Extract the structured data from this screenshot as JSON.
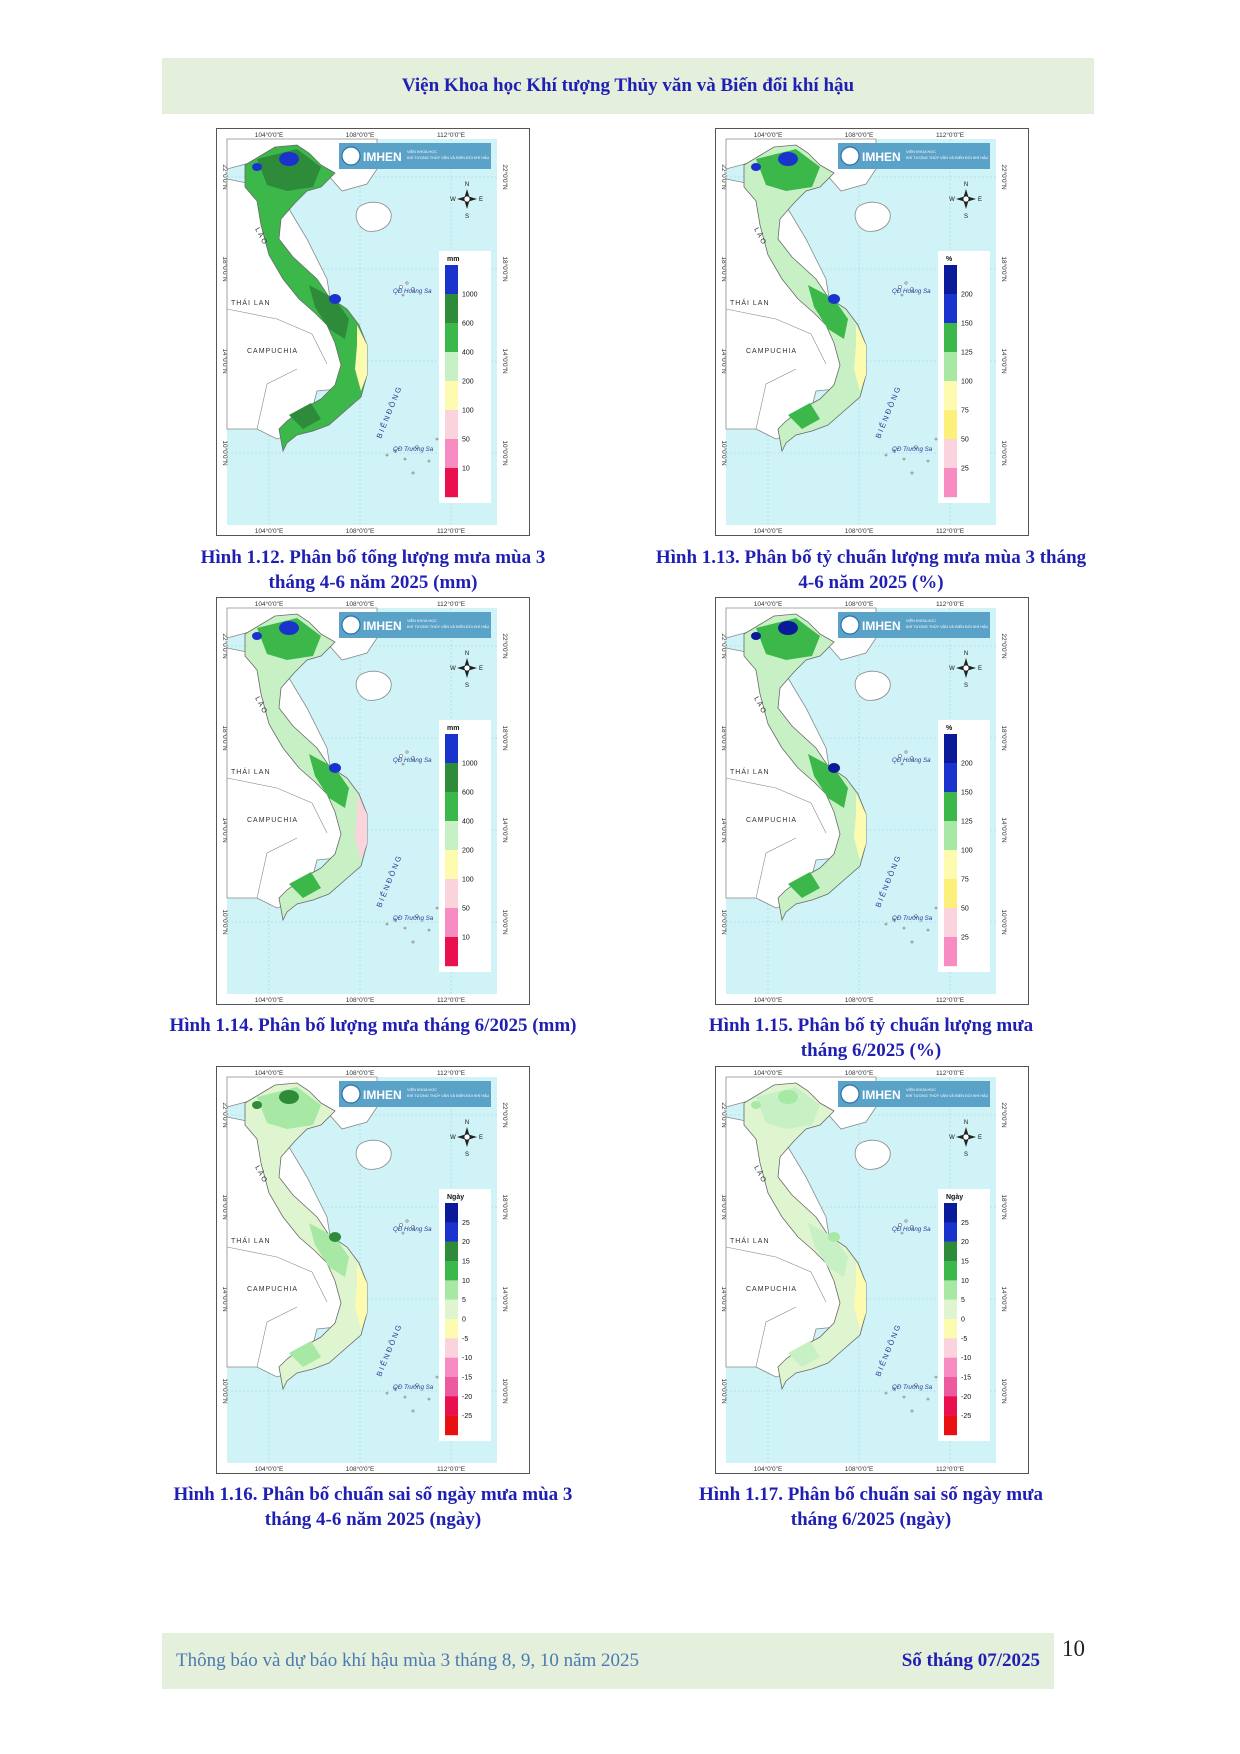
{
  "header": {
    "title": "Viện Khoa học Khí tượng Thủy văn và Biến đổi khí hậu"
  },
  "map_labels": {
    "lon_ticks": [
      "104°0'0\"E",
      "108°0'0\"E",
      "112°0'0\"E"
    ],
    "lat_ticks": [
      "22°0'0\"N",
      "18°0'0\"N",
      "14°0'0\"N",
      "10°0'0\"N"
    ],
    "logo": "IMHEN",
    "logo_sub1": "VIỆN KHOA HỌC",
    "logo_sub2": "KHÍ TƯỢNG THỦY VĂN VÀ BIẾN ĐỔI KHÍ HẬU",
    "compass": {
      "n": "N",
      "s": "S",
      "e": "E",
      "w": "W"
    },
    "laos": "L À O",
    "thailand": "THÁI LAN",
    "cambodia": "CAMPUCHIA",
    "east_sea": "B I Ể N   Đ Ô N G",
    "paracel": "QĐ Hoàng Sa",
    "spratly": "QĐ Trường Sa"
  },
  "legends": {
    "mm": {
      "unit": "mm",
      "labels": [
        "1000",
        "600",
        "400",
        "200",
        "100",
        "50",
        "10"
      ],
      "colors": [
        "#1a33cc",
        "#2e8b3a",
        "#3cb84a",
        "#c7f0c4",
        "#fdfbb0",
        "#fbd3dc",
        "#f78cc3",
        "#e8104e"
      ]
    },
    "pct": {
      "unit": "%",
      "labels": [
        "200",
        "150",
        "125",
        "100",
        "75",
        "50",
        "25"
      ],
      "colors": [
        "#0a1a99",
        "#1a33cc",
        "#3cb84a",
        "#a6e8a4",
        "#fdfbb0",
        "#fdf07a",
        "#fbd3dc",
        "#f78cc3"
      ]
    },
    "days": {
      "unit": "Ngày",
      "labels": [
        "25",
        "20",
        "15",
        "10",
        "5",
        "0",
        "-5",
        "-10",
        "-15",
        "-20",
        "-25"
      ],
      "colors": [
        "#0a1a99",
        "#1a33cc",
        "#2e8b3a",
        "#3cb84a",
        "#a6e8a4",
        "#dff5d0",
        "#fdfbb0",
        "#fbd3dc",
        "#f78cc3",
        "#ee5aa0",
        "#e8104e",
        "#e81010"
      ]
    }
  },
  "figures": [
    {
      "id": "fig12",
      "legend": "mm",
      "land_base": "#3cb84a",
      "patch_main": "#2e8b3a",
      "patch_accent": "#1a33cc",
      "patch_coast": "#fdfbb0",
      "caption_line1": "Hình 1.12. Phân bố tổng lượng mưa mùa 3",
      "caption_line2": "tháng 4-6 năm 2025 (mm)"
    },
    {
      "id": "fig13",
      "legend": "pct",
      "land_base": "#c7f0c4",
      "patch_main": "#3cb84a",
      "patch_accent": "#1a33cc",
      "patch_coast": "#fdfbb0",
      "caption_line1": "Hình 1.13. Phân bố tỷ chuẩn lượng mưa mùa 3 tháng",
      "caption_line2": "4-6 năm 2025 (%)"
    },
    {
      "id": "fig14",
      "legend": "mm",
      "land_base": "#c7f0c4",
      "patch_main": "#3cb84a",
      "patch_accent": "#1a33cc",
      "patch_coast": "#fbd3dc",
      "caption_line1": "Hình 1.14. Phân bố lượng mưa tháng 6/2025 (mm)",
      "caption_line2": ""
    },
    {
      "id": "fig15",
      "legend": "pct",
      "land_base": "#c7f0c4",
      "patch_main": "#3cb84a",
      "patch_accent": "#0a1a99",
      "patch_coast": "#fdfbb0",
      "caption_line1": "Hình 1.15. Phân bố tỷ chuẩn lượng mưa",
      "caption_line2": "tháng 6/2025 (%)"
    },
    {
      "id": "fig16",
      "legend": "days",
      "land_base": "#dff5d0",
      "patch_main": "#a6e8a4",
      "patch_accent": "#2e8b3a",
      "patch_coast": "#fdfbb0",
      "caption_line1": "Hình 1.16. Phân bố chuẩn sai số ngày mưa mùa 3",
      "caption_line2": "tháng 4-6 năm 2025 (ngày)"
    },
    {
      "id": "fig17",
      "legend": "days",
      "land_base": "#dff5d0",
      "patch_main": "#c7f0c4",
      "patch_accent": "#a6e8a4",
      "patch_coast": "#fdfbb0",
      "caption_line1": "Hình 1.17. Phân bố chuẩn sai số ngày mưa",
      "caption_line2": "tháng 6/2025 (ngày)"
    }
  ],
  "footer": {
    "left": "Thông báo và dự báo khí hậu mùa 3 tháng 8, 9, 10 năm 2025",
    "right": "Số tháng 07/2025",
    "page": "10"
  }
}
